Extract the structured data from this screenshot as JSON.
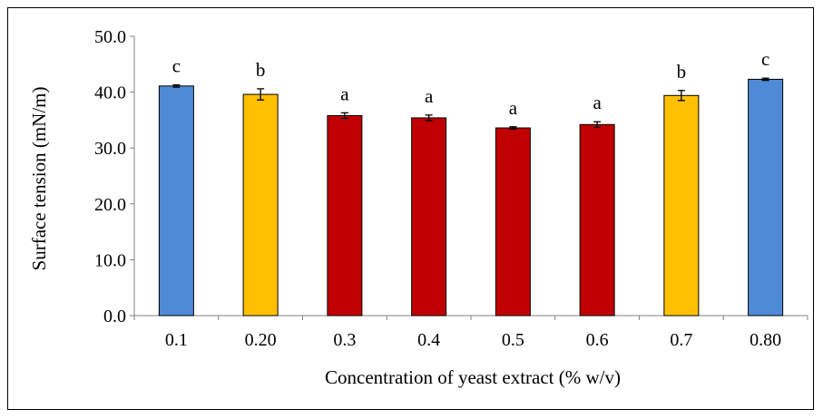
{
  "chart_data": {
    "type": "bar",
    "title": "",
    "xlabel": "Concentration of yeast extract (% w/v)",
    "ylabel": "Surface tension (mN/m)",
    "ylim": [
      0,
      50
    ],
    "y_ticks": [
      "0.0",
      "10.0",
      "20.0",
      "30.0",
      "40.0",
      "50.0"
    ],
    "categories": [
      "0.1",
      "0.20",
      "0.3",
      "0.4",
      "0.5",
      "0.6",
      "0.7",
      "0.80"
    ],
    "values": [
      41.1,
      39.6,
      35.8,
      35.4,
      33.6,
      34.2,
      39.4,
      42.3
    ],
    "errors": [
      0.2,
      1.0,
      0.5,
      0.5,
      0.2,
      0.5,
      0.9,
      0.2
    ],
    "significance": [
      "c",
      "b",
      "a",
      "a",
      "a",
      "a",
      "b",
      "c"
    ],
    "bar_colors": [
      "#4f8ad6",
      "#ffc000",
      "#c00000",
      "#c00000",
      "#c00000",
      "#c00000",
      "#ffc000",
      "#4f8ad6"
    ],
    "grid": false,
    "legend": "none"
  }
}
